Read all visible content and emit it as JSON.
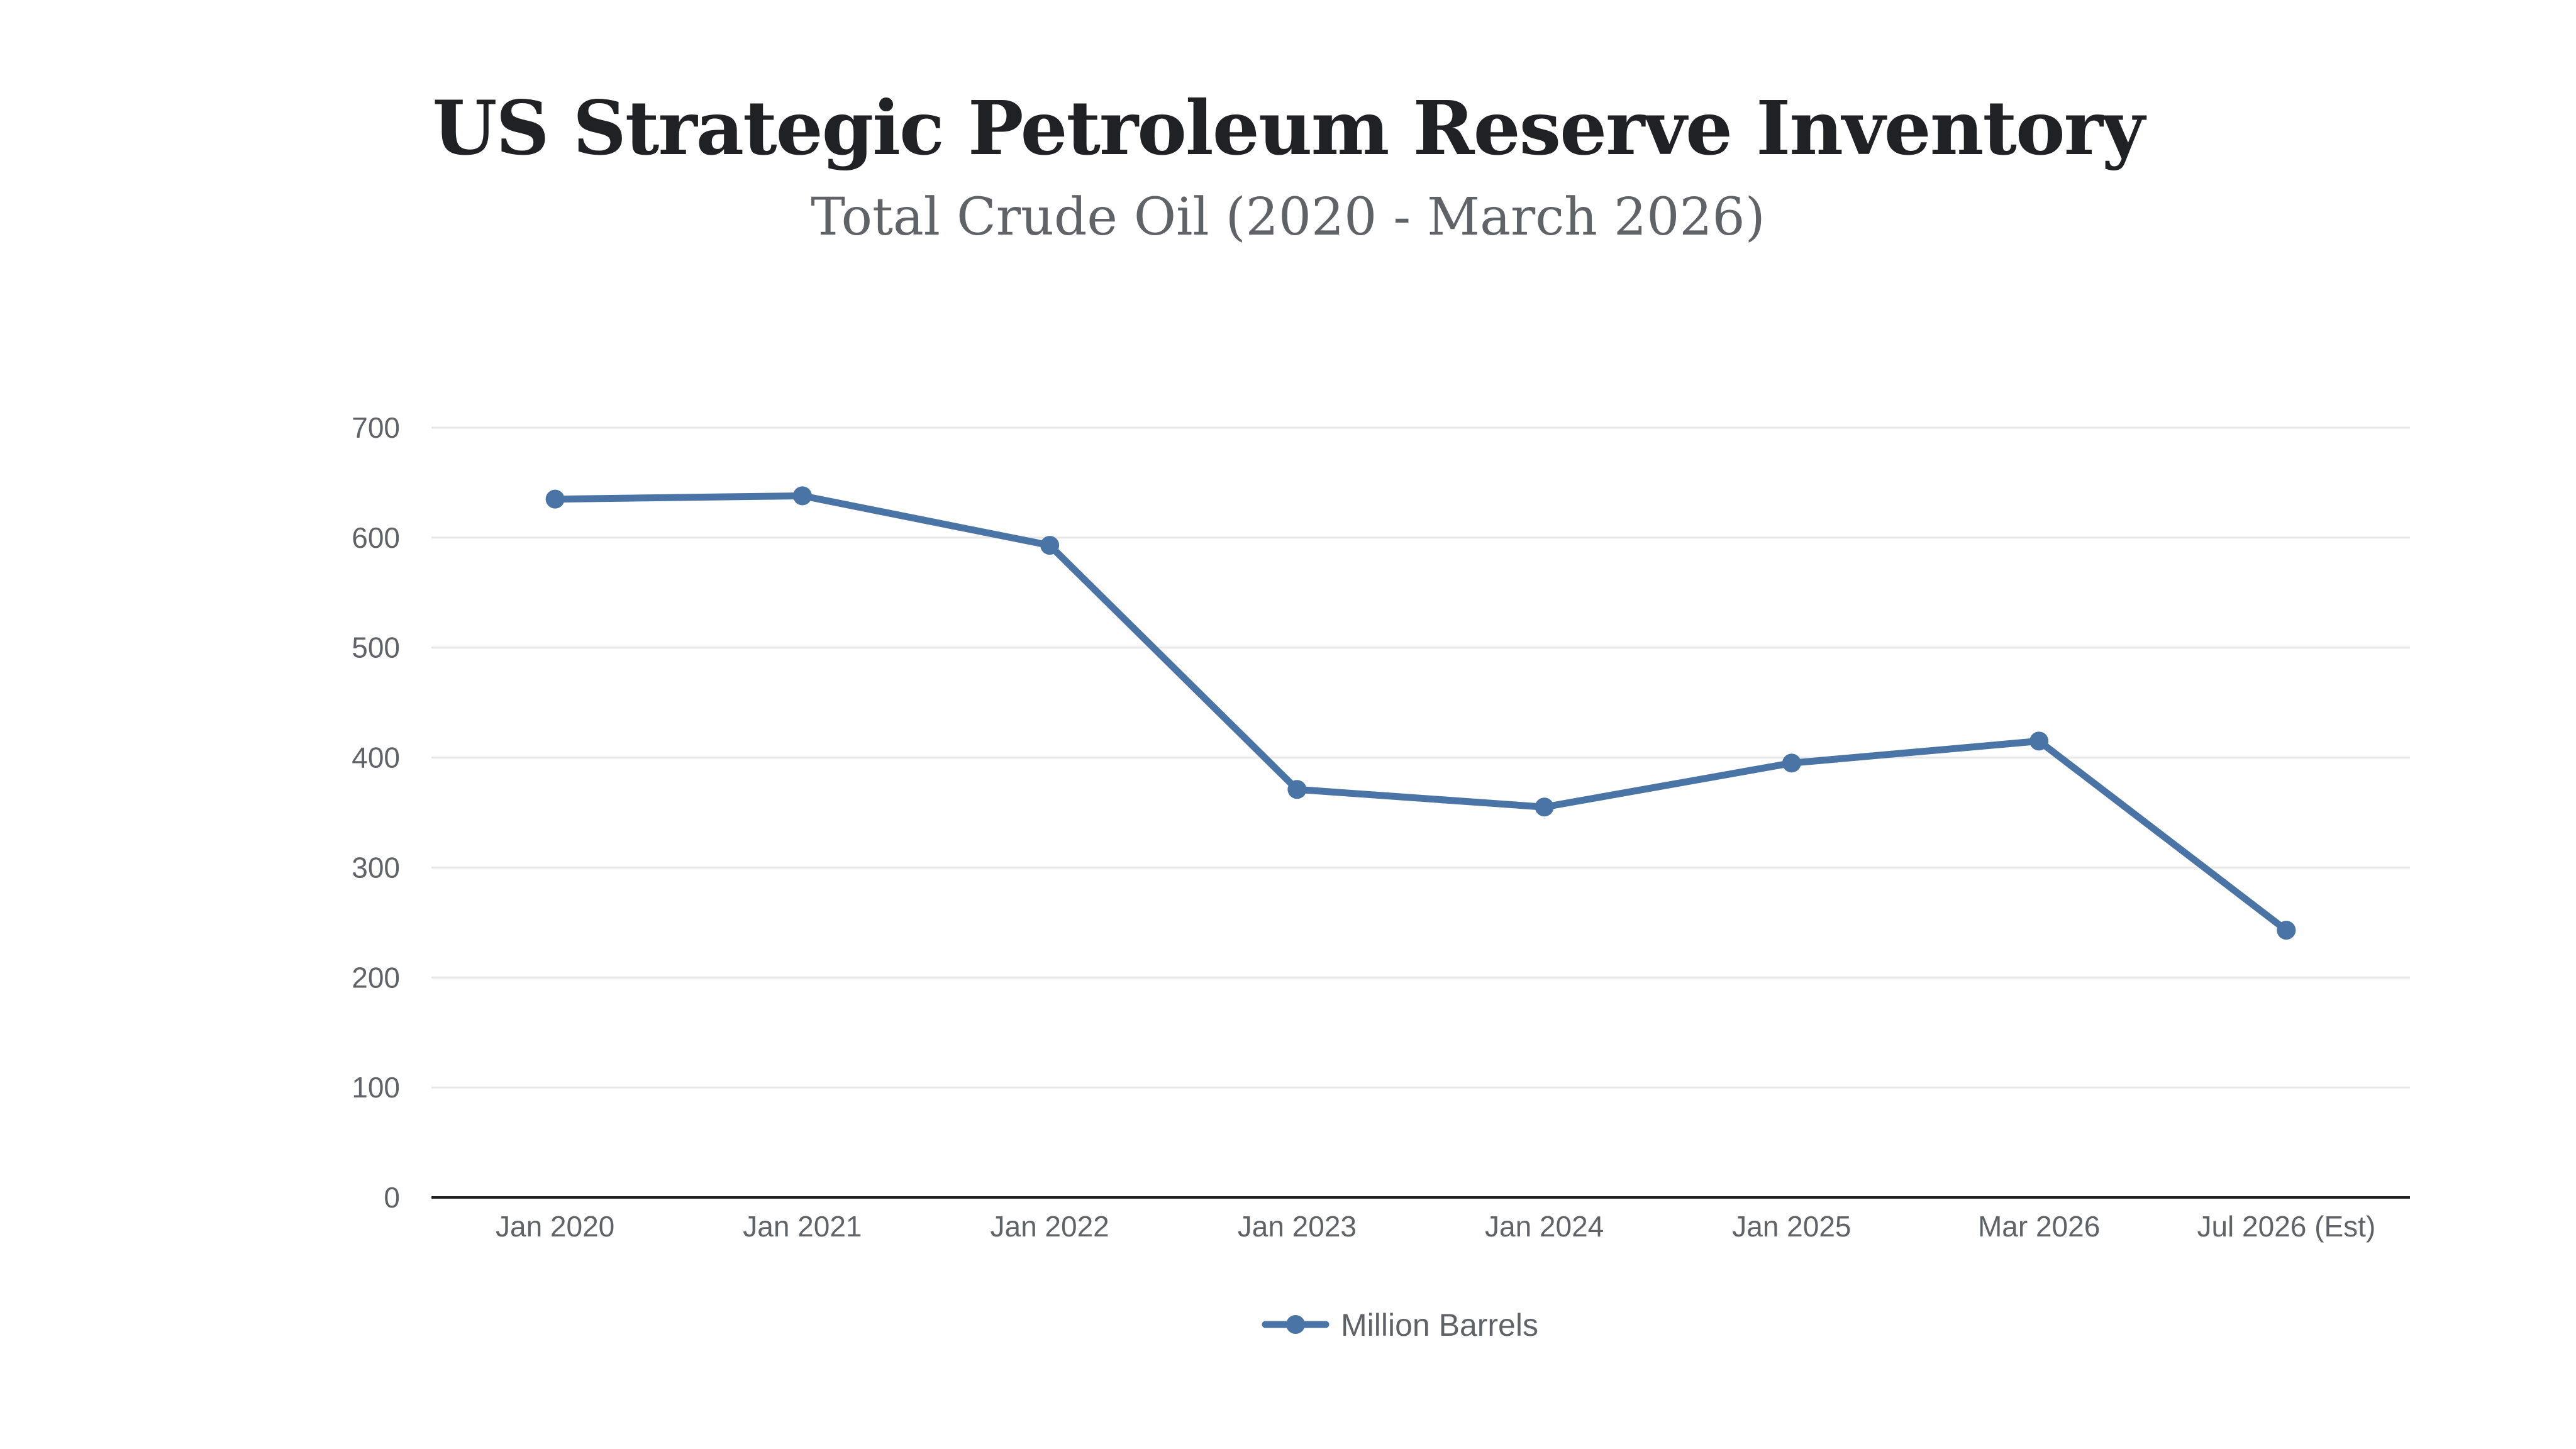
{
  "chart_data": {
    "type": "line",
    "title": "US Strategic Petroleum Reserve Inventory",
    "subtitle": "Total Crude Oil (2020 - March 2026)",
    "categories": [
      "Jan 2020",
      "Jan 2021",
      "Jan 2022",
      "Jan 2023",
      "Jan 2024",
      "Jan 2025",
      "Mar 2026",
      "Jul 2026 (Est)"
    ],
    "series": [
      {
        "name": "Million Barrels",
        "values": [
          635,
          638,
          593,
          371,
          355,
          395,
          415,
          243
        ],
        "color": "#4a74a5"
      }
    ],
    "xlabel": "",
    "ylabel": "",
    "ylim": [
      0,
      700
    ],
    "yticks": [
      0,
      100,
      200,
      300,
      400,
      500,
      600,
      700
    ],
    "grid": true,
    "legend": "bottom-center"
  },
  "colors": {
    "grid": "#e6e6e6",
    "axis": "#202124",
    "line": "#4a74a5"
  }
}
